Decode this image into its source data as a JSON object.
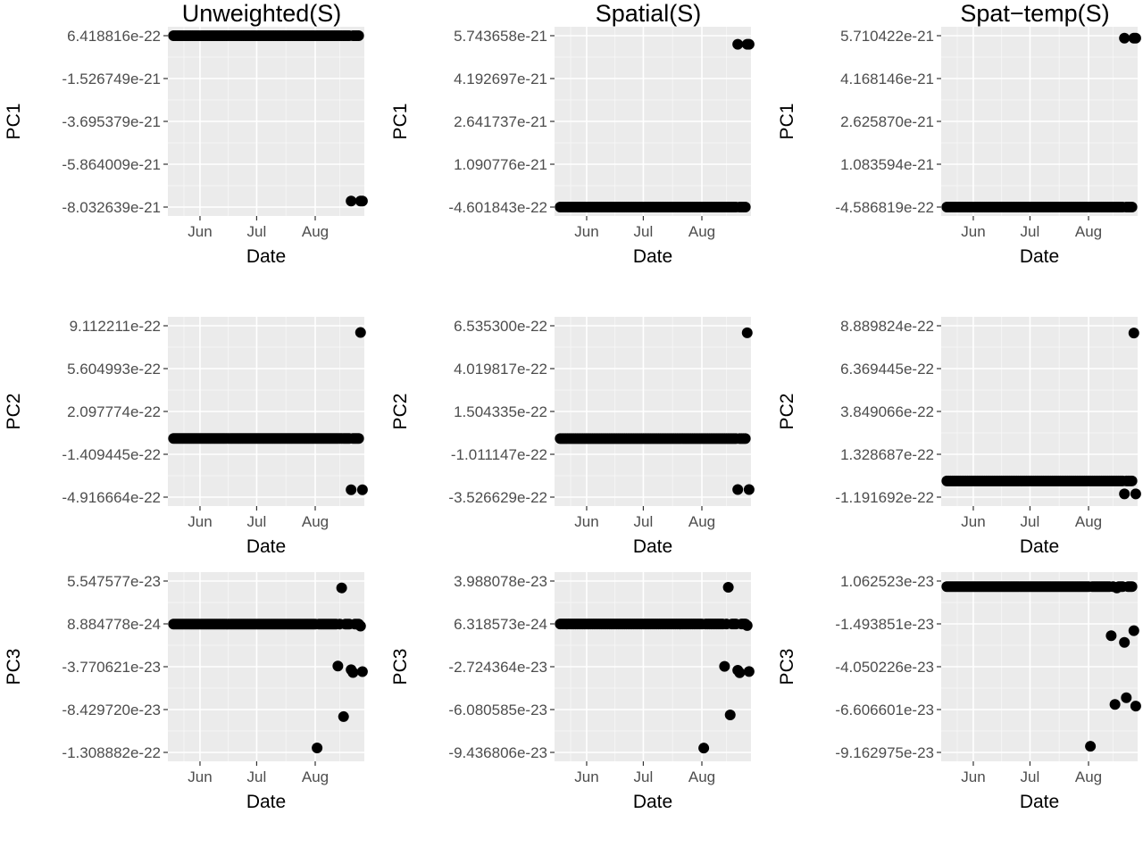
{
  "figure": {
    "columns": [
      "Unweighted(S)",
      "Spatial(S)",
      "Spat−temp(S)"
    ],
    "row_labels": [
      "PC1",
      "PC2",
      "PC3"
    ],
    "x_axis_title": "Date",
    "x_tick_labels": [
      "Jun",
      "Jul",
      "Aug"
    ]
  },
  "colors": {
    "panel_background": "#ebebeb",
    "grid_major": "#ffffff",
    "point": "#000000",
    "tick_text": "#4d4d4d"
  },
  "chart_data": [
    {
      "type": "scatter",
      "column": "Unweighted(S)",
      "ylabel": "PC1",
      "xlabel": "Date",
      "xticks": [
        "Jun",
        "Jul",
        "Aug"
      ],
      "yticks": [
        "6.418816e-22",
        "-1.526749e-21",
        "-3.695379e-21",
        "-5.864009e-21",
        "-8.032639e-21"
      ],
      "ylim": [
        -8.032639e-21,
        6.418816e-22
      ],
      "series": [
        {
          "baseline": 6.418816e-22,
          "points": [
            [
              "2017-08-20",
              -7.727e-21
            ],
            [
              "2017-08-25",
              -7.727e-21
            ],
            [
              "2017-08-26",
              -7.727e-21
            ]
          ]
        }
      ]
    },
    {
      "type": "scatter",
      "column": "Spatial(S)",
      "ylabel": "PC1",
      "xlabel": "Date",
      "xticks": [
        "Jun",
        "Jul",
        "Aug"
      ],
      "yticks": [
        "5.743658e-21",
        "4.192697e-21",
        "2.641737e-21",
        "1.090776e-21",
        "-4.601843e-22"
      ],
      "ylim": [
        -4.601843e-22,
        5.743658e-21
      ],
      "series": [
        {
          "baseline": -4.601843e-22,
          "points": [
            [
              "2017-08-20",
              5.4336e-21
            ],
            [
              "2017-08-25",
              5.4336e-21
            ],
            [
              "2017-08-26",
              5.4336e-21
            ]
          ]
        }
      ]
    },
    {
      "type": "scatter",
      "column": "Spat−temp(S)",
      "ylabel": "PC1",
      "xlabel": "Date",
      "xticks": [
        "Jun",
        "Jul",
        "Aug"
      ],
      "yticks": [
        "5.710422e-21",
        "4.168146e-21",
        "2.625870e-21",
        "1.083594e-21",
        "-4.586819e-22"
      ],
      "ylim": [
        -4.586819e-22,
        5.710422e-21
      ],
      "series": [
        {
          "baseline": -4.586819e-22,
          "points": [
            [
              "2017-08-20",
              5.6233e-21
            ],
            [
              "2017-08-25",
              5.6233e-21
            ],
            [
              "2017-08-26",
              5.6233e-21
            ]
          ]
        }
      ]
    },
    {
      "type": "scatter",
      "column": "Unweighted(S)",
      "ylabel": "PC2",
      "xlabel": "Date",
      "xticks": [
        "Jun",
        "Jul",
        "Aug"
      ],
      "yticks": [
        "9.112211e-22",
        "5.604993e-22",
        "2.097774e-22",
        "-1.409445e-22",
        "-4.916664e-22"
      ],
      "ylim": [
        -4.916664e-22,
        9.112211e-22
      ],
      "series": [
        {
          "baseline": -1.1e-23,
          "points": [
            [
              "2017-08-20",
              -4.31e-22
            ],
            [
              "2017-08-25",
              8.56e-22
            ],
            [
              "2017-08-26",
              -4.31e-22
            ]
          ]
        }
      ]
    },
    {
      "type": "scatter",
      "column": "Spatial(S)",
      "ylabel": "PC2",
      "xlabel": "Date",
      "xticks": [
        "Jun",
        "Jul",
        "Aug"
      ],
      "yticks": [
        "6.535300e-22",
        "4.019817e-22",
        "1.504335e-22",
        "-1.011147e-22",
        "-3.526629e-22"
      ],
      "ylim": [
        -3.526629e-22,
        6.5353e-22
      ],
      "series": [
        {
          "baseline": -8.5e-24,
          "points": [
            [
              "2017-08-20",
              -3.084e-22
            ],
            [
              "2017-08-25",
              6.124e-22
            ],
            [
              "2017-08-26",
              -3.084e-22
            ]
          ]
        }
      ]
    },
    {
      "type": "scatter",
      "column": "Spat−temp(S)",
      "ylabel": "PC2",
      "xlabel": "Date",
      "xticks": [
        "Jun",
        "Jul",
        "Aug"
      ],
      "yticks": [
        "8.889824e-22",
        "6.369445e-22",
        "3.849066e-22",
        "1.328687e-22",
        "-1.191692e-22"
      ],
      "ylim": [
        -1.191692e-22,
        8.889824e-22
      ],
      "series": [
        {
          "baseline": -2.4e-23,
          "points": [
            [
              "2017-08-20",
              -1e-22
            ],
            [
              "2017-08-25",
              8.465e-22
            ],
            [
              "2017-08-26",
              -1e-22
            ]
          ]
        }
      ]
    },
    {
      "type": "scatter",
      "column": "Unweighted(S)",
      "ylabel": "PC3",
      "xlabel": "Date",
      "xticks": [
        "Jun",
        "Jul",
        "Aug"
      ],
      "yticks": [
        "5.547577e-23",
        "8.884778e-24",
        "-3.770621e-23",
        "-8.429720e-23",
        "-1.308882e-22"
      ],
      "ylim": [
        -1.308882e-22,
        5.547577e-23
      ],
      "series": [
        {
          "baseline": 8.6e-24,
          "points": [
            [
              "2017-08-02",
              -1.26e-22
            ],
            [
              "2017-08-13",
              -3.7e-23
            ],
            [
              "2017-08-15",
              4.8e-23
            ],
            [
              "2017-08-16",
              -9.2e-23
            ],
            [
              "2017-08-20",
              -4.1e-23
            ],
            [
              "2017-08-21",
              -4.4e-23
            ],
            [
              "2017-08-25",
              6.5e-24
            ],
            [
              "2017-08-26",
              -4.3e-23
            ]
          ]
        }
      ]
    },
    {
      "type": "scatter",
      "column": "Spatial(S)",
      "ylabel": "PC3",
      "xlabel": "Date",
      "xticks": [
        "Jun",
        "Jul",
        "Aug"
      ],
      "yticks": [
        "3.988078e-23",
        "6.318573e-24",
        "-2.724364e-23",
        "-6.080585e-23",
        "-9.436806e-23"
      ],
      "ylim": [
        -9.436806e-23,
        3.988078e-23
      ],
      "series": [
        {
          "baseline": 6.2e-24,
          "points": [
            [
              "2017-08-02",
              -9.1e-23
            ],
            [
              "2017-08-13",
              -2.7e-23
            ],
            [
              "2017-08-15",
              3.5e-23
            ],
            [
              "2017-08-16",
              -6.5e-23
            ],
            [
              "2017-08-20",
              -3e-23
            ],
            [
              "2017-08-21",
              -3.2e-23
            ],
            [
              "2017-08-25",
              5e-24
            ],
            [
              "2017-08-26",
              -3.1e-23
            ]
          ]
        }
      ]
    },
    {
      "type": "scatter",
      "column": "Spat−temp(S)",
      "ylabel": "PC3",
      "xlabel": "Date",
      "xticks": [
        "Jun",
        "Jul",
        "Aug"
      ],
      "yticks": [
        "1.062523e-23",
        "-1.493851e-23",
        "-4.050226e-23",
        "-6.606601e-23",
        "-9.162975e-23"
      ],
      "ylim": [
        -9.162975e-23,
        1.062523e-23
      ],
      "series": [
        {
          "baseline": 7.3e-24,
          "points": [
            [
              "2017-08-02",
              -8.8e-23
            ],
            [
              "2017-08-13",
              -2.2e-23
            ],
            [
              "2017-08-15",
              -6.3e-23
            ],
            [
              "2017-08-16",
              6.5e-24
            ],
            [
              "2017-08-20",
              -2.6e-23
            ],
            [
              "2017-08-21",
              -5.9e-23
            ],
            [
              "2017-08-25",
              -1.9e-23
            ],
            [
              "2017-08-26",
              -6.4e-23
            ]
          ]
        }
      ]
    }
  ]
}
